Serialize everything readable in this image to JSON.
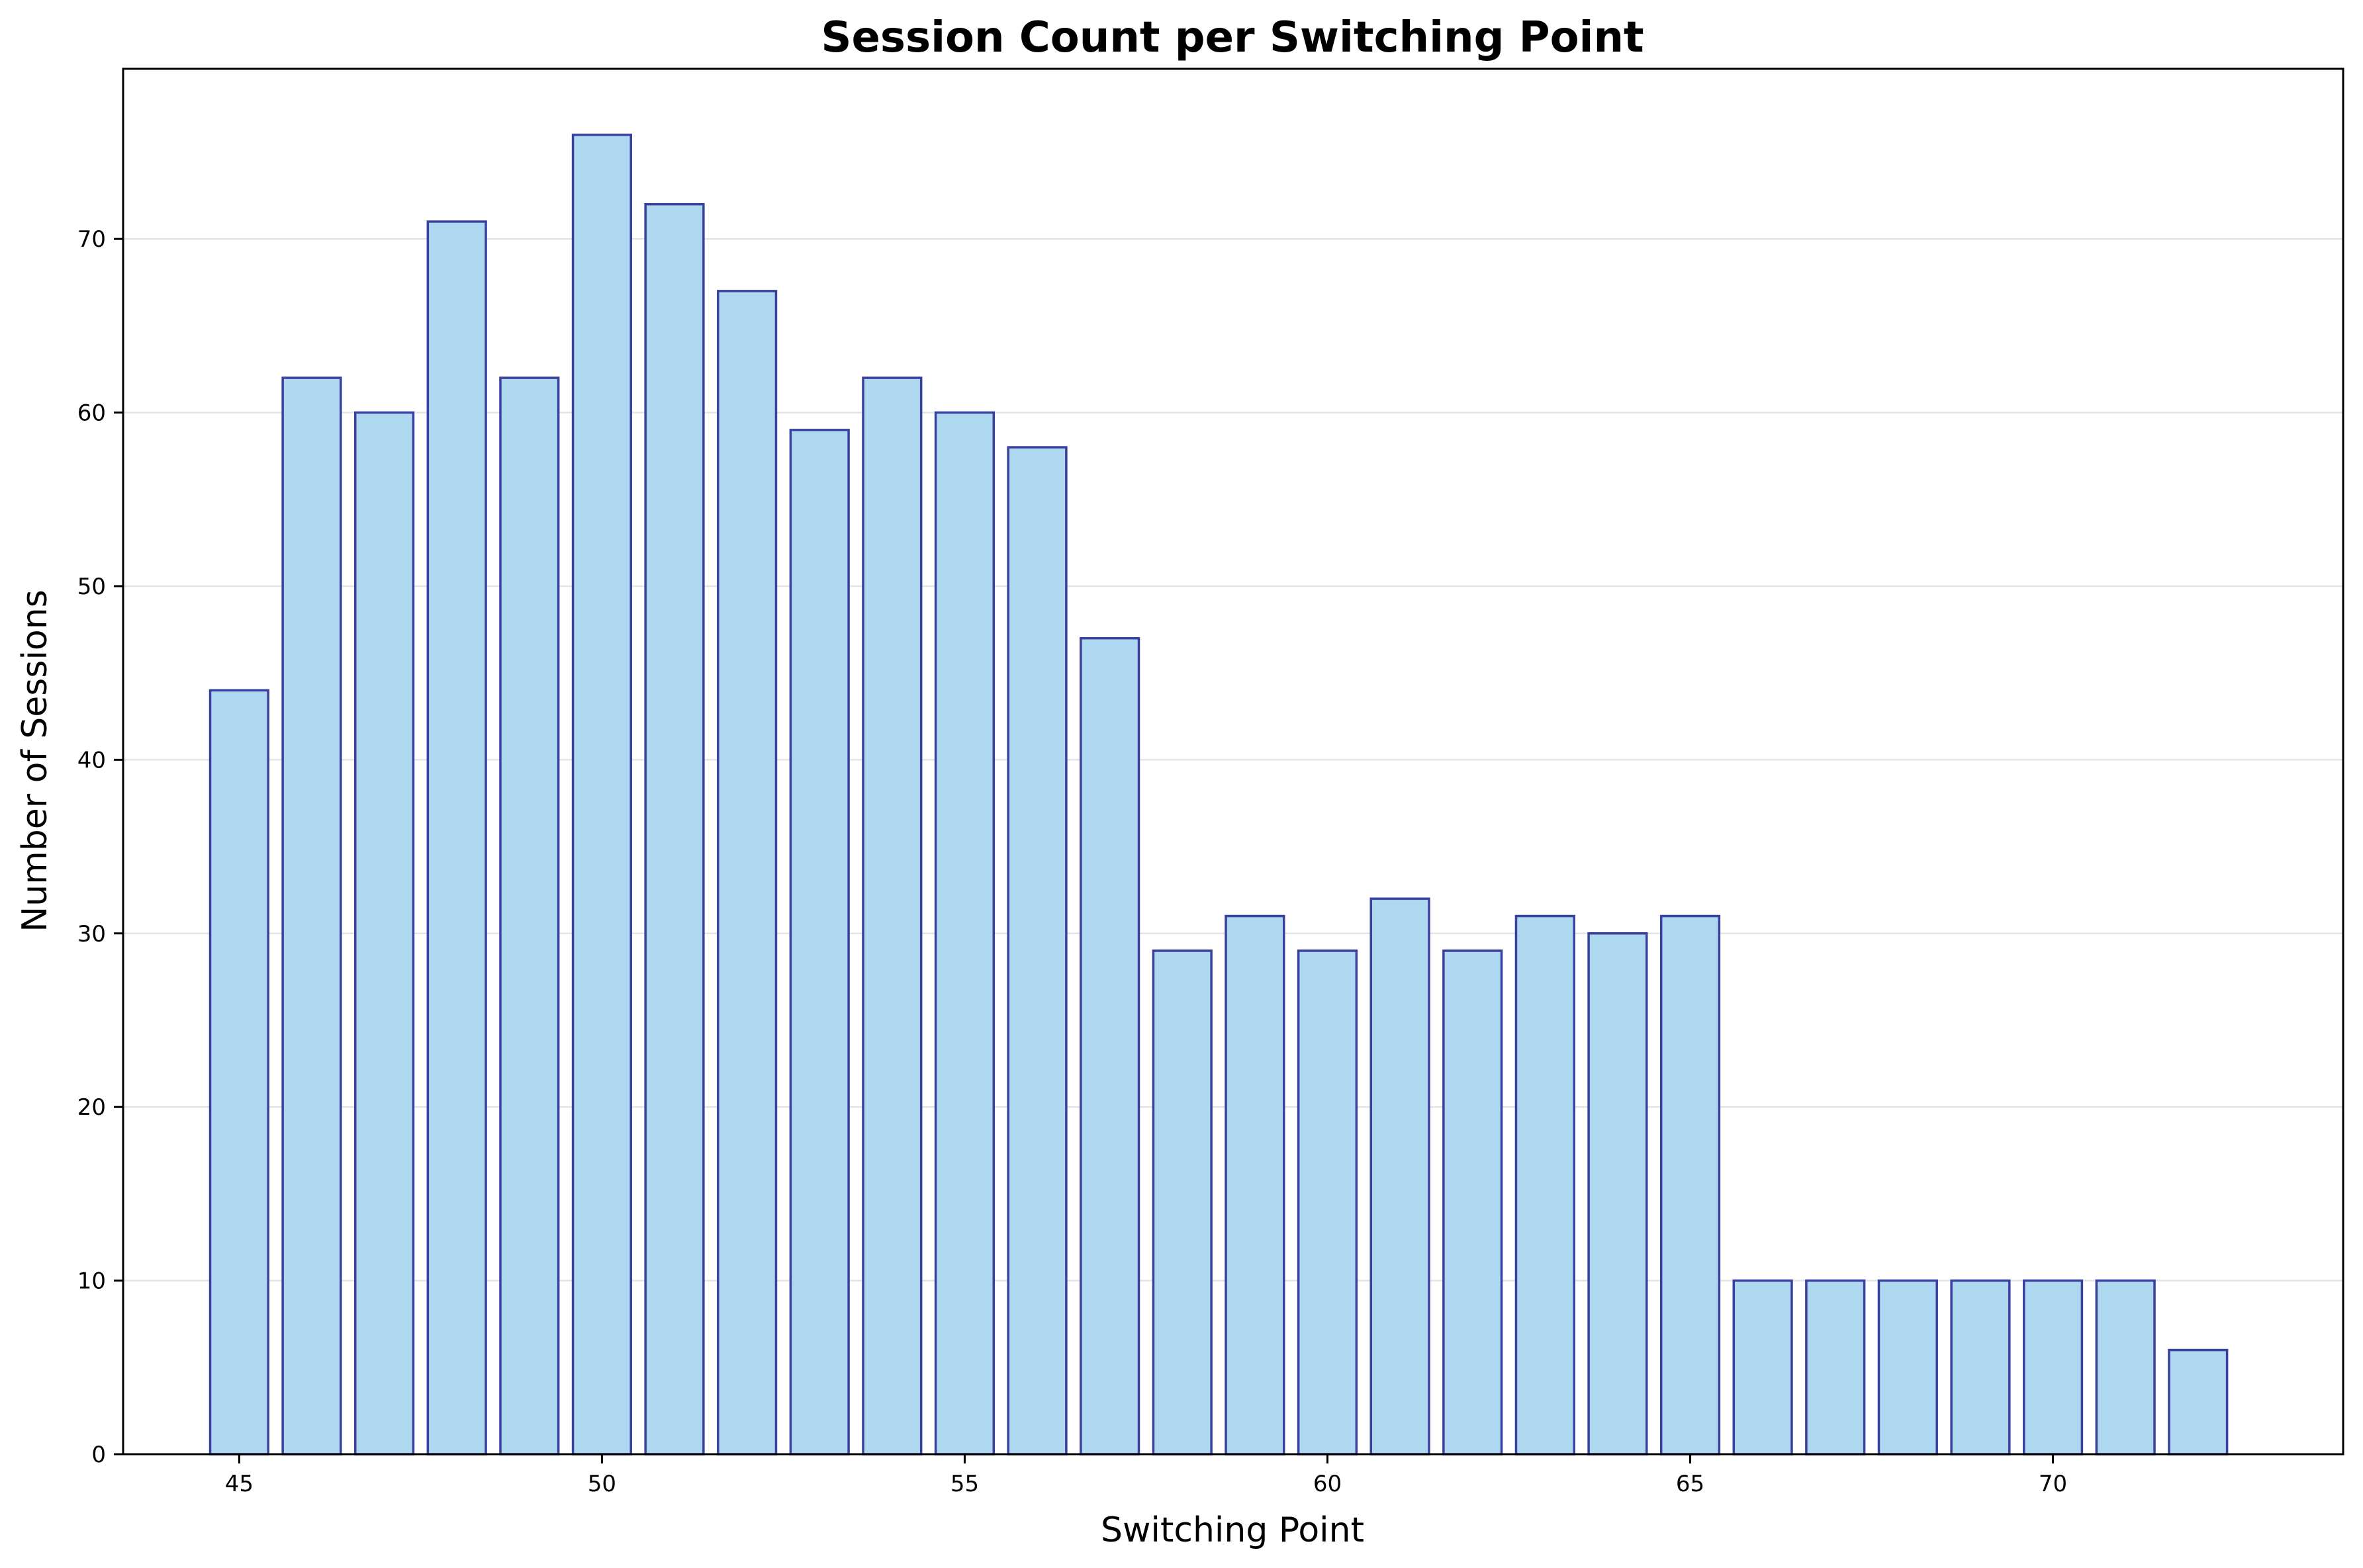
{
  "chart_data": {
    "type": "bar",
    "title": "Session Count per Switching Point",
    "xlabel": "Switching Point",
    "ylabel": "Number of Sessions",
    "x": [
      45,
      46,
      47,
      48,
      49,
      50,
      51,
      52,
      53,
      54,
      55,
      56,
      57,
      58,
      59,
      60,
      61,
      62,
      63,
      64,
      65,
      66,
      67,
      68,
      69,
      70,
      71,
      72
    ],
    "values": [
      44,
      62,
      60,
      71,
      62,
      76,
      72,
      67,
      59,
      62,
      60,
      58,
      47,
      29,
      31,
      29,
      32,
      29,
      31,
      30,
      31,
      10,
      10,
      10,
      10,
      10,
      10,
      6
    ],
    "xlim": [
      43.4,
      74.0
    ],
    "ylim": [
      0,
      79.8
    ],
    "xticks": [
      45,
      50,
      55,
      60,
      65,
      70
    ],
    "yticks": [
      0,
      10,
      20,
      30,
      40,
      50,
      60,
      70
    ],
    "bar_width": 0.8,
    "grid": "y",
    "legend": "none",
    "colors": {
      "bar_fill": "#add8ef",
      "bar_edge": "#3a40a0",
      "grid": "#e4e4e4",
      "axis": "#000000"
    }
  }
}
